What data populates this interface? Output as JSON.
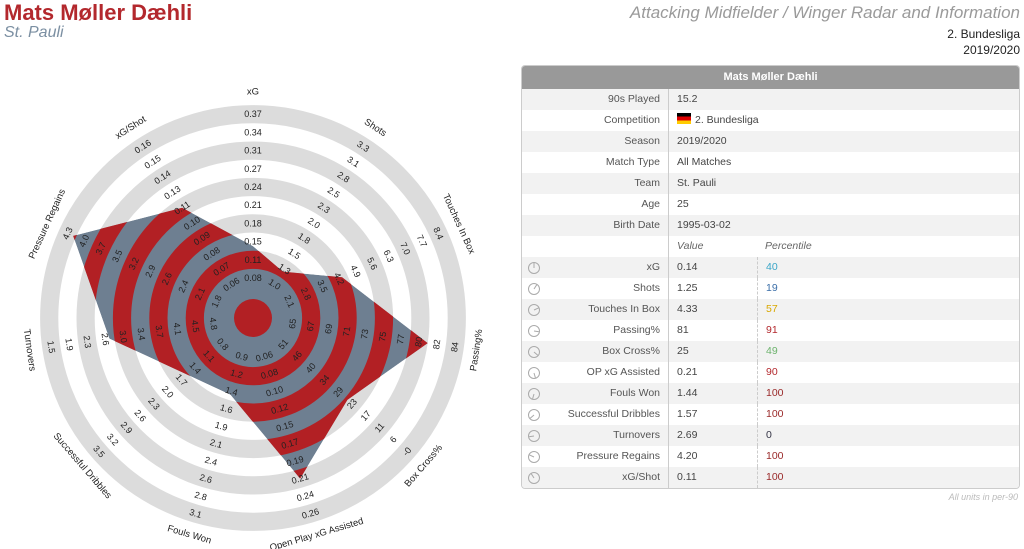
{
  "header": {
    "title": "Mats Møller Dæhli",
    "subtitle": "St. Pauli",
    "right_title": "Attacking Midfielder / Winger Radar and Information",
    "competition": "2. Bundesliga",
    "season": "2019/2020"
  },
  "colors": {
    "title": "#b3282d",
    "red": "#b22024",
    "slate": "#6e7f91",
    "ring": "#dcdcdc"
  },
  "table": {
    "title": "Mats Møller Dæhli",
    "info": [
      {
        "label": "90s Played",
        "value": "15.2"
      },
      {
        "label": "Competition",
        "value": "2. Bundesliga",
        "flag": "germany-flag"
      },
      {
        "label": "Season",
        "value": "2019/2020"
      },
      {
        "label": "Match Type",
        "value": "All Matches"
      },
      {
        "label": "Team",
        "value": "St. Pauli"
      },
      {
        "label": "Age",
        "value": "25"
      },
      {
        "label": "Birth Date",
        "value": "1995-03-02"
      }
    ],
    "value_header": "Value",
    "percentile_header": "Percentile",
    "stats": [
      {
        "label": "xG",
        "value": "0.14",
        "percentile": "40",
        "color": "#3aa6c8"
      },
      {
        "label": "Shots",
        "value": "1.25",
        "percentile": "19",
        "color": "#3b6ea8"
      },
      {
        "label": "Touches In Box",
        "value": "4.33",
        "percentile": "57",
        "color": "#d9a800"
      },
      {
        "label": "Passing%",
        "value": "81",
        "percentile": "91",
        "color": "#b3282d"
      },
      {
        "label": "Box Cross%",
        "value": "25",
        "percentile": "49",
        "color": "#6db36d"
      },
      {
        "label": "OP xG Assisted",
        "value": "0.21",
        "percentile": "90",
        "color": "#b3282d"
      },
      {
        "label": "Fouls Won",
        "value": "1.44",
        "percentile": "100",
        "color": "#9a2a2a"
      },
      {
        "label": "Successful Dribbles",
        "value": "1.57",
        "percentile": "100",
        "color": "#9a2a2a"
      },
      {
        "label": "Turnovers",
        "value": "2.69",
        "percentile": "0",
        "color": "#334"
      },
      {
        "label": "Pressure Regains",
        "value": "4.20",
        "percentile": "100",
        "color": "#9a2a2a"
      },
      {
        "label": "xG/Shot",
        "value": "0.11",
        "percentile": "100",
        "color": "#9a2a2a"
      }
    ],
    "footnote": "All units in per-90"
  },
  "chart_data": {
    "type": "radar",
    "axes": [
      {
        "name": "xG",
        "ticks": [
          "0.08",
          "0.11",
          "0.15",
          "0.18",
          "0.21",
          "0.24",
          "0.27",
          "0.31",
          "0.34",
          "0.37"
        ],
        "value": 0.14
      },
      {
        "name": "Shots",
        "ticks": [
          "1.0",
          "1.3",
          "1.5",
          "1.8",
          "2.0",
          "2.3",
          "2.5",
          "2.8",
          "3.1",
          "3.3"
        ],
        "value": 1.25
      },
      {
        "name": "Touches In Box",
        "ticks": [
          "2.1",
          "2.8",
          "3.5",
          "4.2",
          "4.9",
          "5.6",
          "6.3",
          "7.0",
          "7.7",
          "8.4"
        ],
        "value": 4.33
      },
      {
        "name": "Passing%",
        "ticks": [
          "65",
          "67",
          "69",
          "71",
          "73",
          "75",
          "77",
          "80",
          "82",
          "84"
        ],
        "value": 81
      },
      {
        "name": "Box Cross%",
        "ticks": [
          "51",
          "46",
          "40",
          "34",
          "29",
          "23",
          "17",
          "11",
          "6",
          "-0"
        ],
        "value": 25
      },
      {
        "name": "Open Play xG Assisted",
        "ticks": [
          "0.06",
          "0.08",
          "0.10",
          "0.12",
          "0.15",
          "0.17",
          "0.19",
          "0.21",
          "0.24",
          "0.26"
        ],
        "value": 0.21
      },
      {
        "name": "Fouls Won",
        "ticks": [
          "0.9",
          "1.2",
          "1.4",
          "1.6",
          "1.9",
          "2.1",
          "2.4",
          "2.6",
          "2.8",
          "3.1"
        ],
        "value": 1.44
      },
      {
        "name": "Successful Dribbles",
        "ticks": [
          "0.8",
          "1.1",
          "1.4",
          "1.7",
          "2.0",
          "2.3",
          "2.6",
          "2.9",
          "3.2",
          "3.5"
        ],
        "value": 1.57
      },
      {
        "name": "Turnovers",
        "ticks": [
          "4.8",
          "4.5",
          "4.1",
          "3.7",
          "3.4",
          "3.0",
          "2.6",
          "2.3",
          "1.9",
          "1.5"
        ],
        "value": 2.69
      },
      {
        "name": "Pressure Regains",
        "ticks": [
          "1.8",
          "2.1",
          "2.4",
          "2.6",
          "2.9",
          "3.2",
          "3.5",
          "3.7",
          "4.0",
          "4.3"
        ],
        "value": 4.2
      },
      {
        "name": "xG/Shot",
        "ticks": [
          "0.06",
          "0.07",
          "0.08",
          "0.09",
          "0.10",
          "0.11",
          "0.13",
          "0.14",
          "0.15",
          "0.16"
        ],
        "value": 0.11
      }
    ]
  }
}
